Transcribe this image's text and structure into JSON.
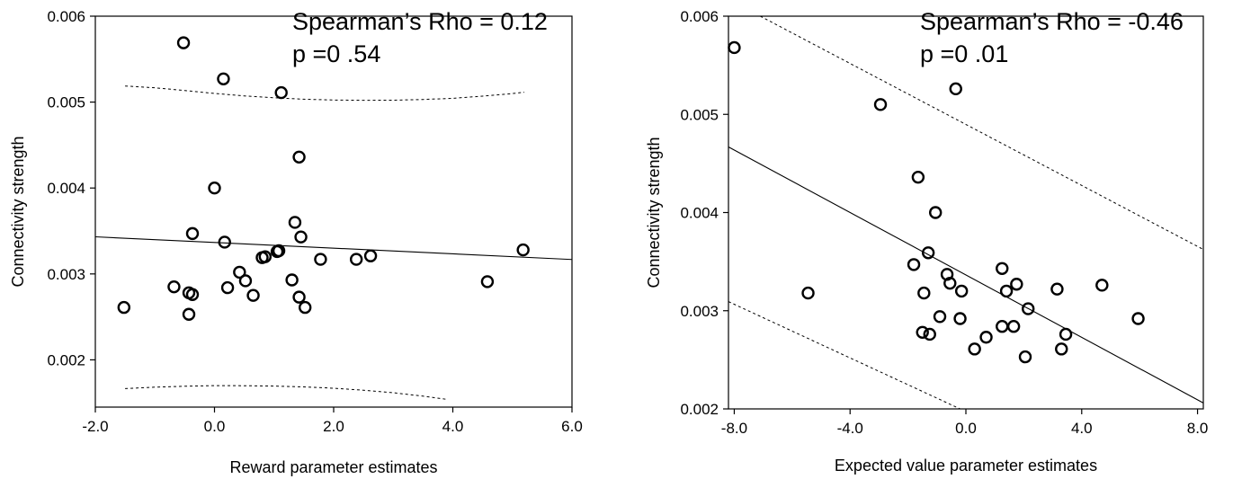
{
  "chart_data": [
    {
      "type": "scatter",
      "title": "",
      "xlabel": "Reward parameter estimates",
      "ylabel": "Connectivity strength",
      "xlim": [
        -2.0,
        6.0
      ],
      "ylim": [
        0.00145,
        0.006
      ],
      "x_ticks": [
        -2.0,
        0.0,
        2.0,
        4.0,
        6.0
      ],
      "x_tick_labels": [
        "-2.0",
        "0.0",
        "2.0",
        "4.0",
        "6.0"
      ],
      "y_ticks": [
        0.002,
        0.003,
        0.004,
        0.005,
        0.006
      ],
      "y_tick_labels": [
        "0.002",
        "0.003",
        "0.004",
        "0.005",
        "0.006"
      ],
      "grid": false,
      "annotations": [
        "Spearman’s Rho = 0.12",
        "p =0 .54"
      ],
      "points": [
        {
          "x": -0.52,
          "y": 0.00569
        },
        {
          "x": 0.15,
          "y": 0.00527
        },
        {
          "x": 1.12,
          "y": 0.00511
        },
        {
          "x": 1.42,
          "y": 0.00436
        },
        {
          "x": 0.0,
          "y": 0.004
        },
        {
          "x": 1.35,
          "y": 0.0036
        },
        {
          "x": -0.37,
          "y": 0.00347
        },
        {
          "x": 1.45,
          "y": 0.00343
        },
        {
          "x": 0.17,
          "y": 0.00337
        },
        {
          "x": 1.05,
          "y": 0.00326
        },
        {
          "x": 1.08,
          "y": 0.00327
        },
        {
          "x": 5.18,
          "y": 0.00328
        },
        {
          "x": 0.8,
          "y": 0.00319
        },
        {
          "x": 0.85,
          "y": 0.0032
        },
        {
          "x": 1.78,
          "y": 0.00317
        },
        {
          "x": 2.38,
          "y": 0.00317
        },
        {
          "x": 2.62,
          "y": 0.00321
        },
        {
          "x": 0.42,
          "y": 0.00302
        },
        {
          "x": 0.52,
          "y": 0.00292
        },
        {
          "x": 1.3,
          "y": 0.00293
        },
        {
          "x": 4.58,
          "y": 0.00291
        },
        {
          "x": -0.68,
          "y": 0.00285
        },
        {
          "x": 0.22,
          "y": 0.00284
        },
        {
          "x": -0.43,
          "y": 0.00278
        },
        {
          "x": -0.37,
          "y": 0.00276
        },
        {
          "x": 0.65,
          "y": 0.00275
        },
        {
          "x": 1.42,
          "y": 0.00273
        },
        {
          "x": -1.52,
          "y": 0.00261
        },
        {
          "x": 1.52,
          "y": 0.00261
        },
        {
          "x": -0.43,
          "y": 0.00253
        }
      ],
      "fit_line": {
        "x": [
          -2.0,
          6.0
        ],
        "y": [
          0.003432,
          0.003168
        ]
      },
      "upper_ci": {
        "x": [
          -1.5,
          -1.0,
          -0.5,
          0.0,
          0.5,
          1.0,
          1.5,
          2.0,
          2.5,
          3.0,
          3.5,
          4.0,
          4.5,
          5.0,
          5.2
        ],
        "y": [
          0.005187,
          0.005166,
          0.005135,
          0.0051,
          0.005072,
          0.00505,
          0.005033,
          0.005024,
          0.005021,
          0.005022,
          0.00503,
          0.005044,
          0.005069,
          0.005099,
          0.005115
        ]
      },
      "lower_ci": {
        "x": [
          -1.5,
          -1.0,
          -0.5,
          0.0,
          0.5,
          1.0,
          1.5,
          2.0,
          2.5,
          3.0,
          3.5,
          3.9
        ],
        "y": [
          0.001665,
          0.001682,
          0.001693,
          0.0017,
          0.001699,
          0.001695,
          0.001685,
          0.00167,
          0.001647,
          0.001617,
          0.001578,
          0.00154
        ]
      }
    },
    {
      "type": "scatter",
      "title": "",
      "xlabel": "Expected value parameter estimates",
      "ylabel": "Connectivity strength",
      "xlim": [
        -8.2,
        8.2
      ],
      "ylim": [
        0.002,
        0.006
      ],
      "x_ticks": [
        -8.0,
        -4.0,
        0.0,
        4.0,
        8.0
      ],
      "x_tick_labels": [
        "-8.0",
        "-4.0",
        "0.0",
        "4.0",
        "8.0"
      ],
      "y_ticks": [
        0.002,
        0.003,
        0.004,
        0.005,
        0.006
      ],
      "y_tick_labels": [
        "0.002",
        "0.003",
        "0.004",
        "0.005",
        "0.006"
      ],
      "grid": false,
      "annotations": [
        "Spearman’s Rho = -0.46",
        "p =0 .01"
      ],
      "points": [
        {
          "x": -8.0,
          "y": 0.00568
        },
        {
          "x": -0.35,
          "y": 0.00526
        },
        {
          "x": -2.95,
          "y": 0.0051
        },
        {
          "x": -1.65,
          "y": 0.00436
        },
        {
          "x": -1.05,
          "y": 0.004
        },
        {
          "x": -1.3,
          "y": 0.00359
        },
        {
          "x": -1.8,
          "y": 0.00347
        },
        {
          "x": 1.25,
          "y": 0.00343
        },
        {
          "x": -0.65,
          "y": 0.00337
        },
        {
          "x": -0.55,
          "y": 0.00328
        },
        {
          "x": 1.75,
          "y": 0.00327
        },
        {
          "x": 4.7,
          "y": 0.00326
        },
        {
          "x": 3.15,
          "y": 0.00322
        },
        {
          "x": -5.45,
          "y": 0.00318
        },
        {
          "x": -1.45,
          "y": 0.00318
        },
        {
          "x": -0.15,
          "y": 0.0032
        },
        {
          "x": 1.4,
          "y": 0.0032
        },
        {
          "x": 2.15,
          "y": 0.00302
        },
        {
          "x": -0.9,
          "y": 0.00294
        },
        {
          "x": -0.2,
          "y": 0.00292
        },
        {
          "x": 5.95,
          "y": 0.00292
        },
        {
          "x": 1.25,
          "y": 0.00284
        },
        {
          "x": 1.65,
          "y": 0.00284
        },
        {
          "x": -1.5,
          "y": 0.00278
        },
        {
          "x": -1.25,
          "y": 0.00276
        },
        {
          "x": 0.7,
          "y": 0.00273
        },
        {
          "x": 3.45,
          "y": 0.00276
        },
        {
          "x": 0.3,
          "y": 0.00261
        },
        {
          "x": 3.3,
          "y": 0.00261
        },
        {
          "x": 2.05,
          "y": 0.00253
        }
      ],
      "fit_line": {
        "x": [
          -8.2,
          8.2
        ],
        "y": [
          0.004668,
          0.002061
        ]
      },
      "upper_ci": {
        "x": [
          -7.1,
          8.2
        ],
        "y": [
          0.006,
          0.003624
        ]
      },
      "lower_ci": {
        "x": [
          -8.2,
          -0.2
        ],
        "y": [
          0.003093,
          0.002
        ]
      }
    }
  ]
}
